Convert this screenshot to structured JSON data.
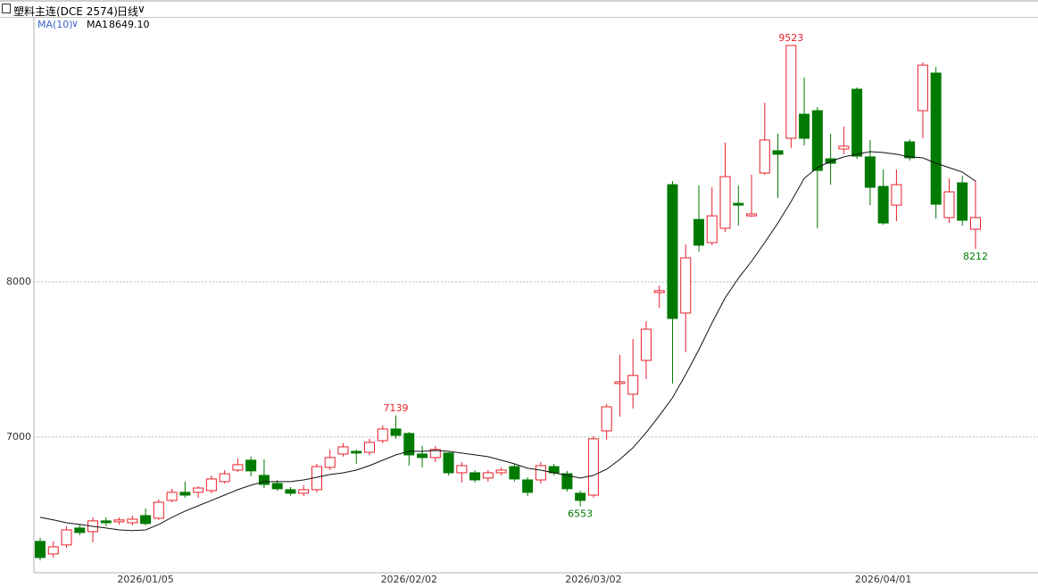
{
  "chart_data": {
    "type": "candlestick",
    "title": "塑料主连(DCE 2574)",
    "period": "日线",
    "indicator": "MA(10)",
    "categories": [
      null,
      null,
      null,
      null,
      null,
      null,
      null,
      null,
      "2026/01/05",
      null,
      null,
      null,
      null,
      null,
      null,
      null,
      null,
      null,
      null,
      null,
      null,
      null,
      null,
      null,
      null,
      null,
      null,
      null,
      "2026/02/02",
      null,
      null,
      null,
      null,
      null,
      null,
      null,
      null,
      null,
      null,
      null,
      null,
      null,
      "2026/03/02",
      null,
      null,
      null,
      null,
      null,
      null,
      null,
      null,
      null,
      null,
      null,
      null,
      null,
      null,
      null,
      null,
      null,
      null,
      null,
      null,
      null,
      "2026/04/01",
      null,
      null,
      null,
      null,
      null,
      null,
      null
    ],
    "open": [
      6328,
      6247,
      6305,
      6414,
      6391,
      6460,
      6454,
      6448,
      6494,
      6477,
      6592,
      6644,
      6644,
      6655,
      6713,
      6787,
      6851,
      6753,
      6701,
      6661,
      6638,
      6661,
      6805,
      6891,
      6908,
      6902,
      6977,
      7052,
      7023,
      6891,
      6868,
      6897,
      6770,
      6770,
      6736,
      6770,
      6810,
      6724,
      6724,
      6810,
      6764,
      6638,
      6626,
      7040,
      7345,
      7276,
      7494,
      7931,
      8626,
      7799,
      8402,
      8253,
      8345,
      8506,
      8425,
      8701,
      8845,
      8925,
      9080,
      9103,
      8793,
      8856,
      9241,
      8805,
      8615,
      8494,
      8902,
      9103,
      9345,
      8414,
      8638,
      8339
    ],
    "high": [
      6351,
      6328,
      6425,
      6437,
      6483,
      6483,
      6483,
      6494,
      6540,
      6598,
      6667,
      6713,
      6684,
      6753,
      6787,
      6862,
      6874,
      6856,
      6724,
      6678,
      6690,
      6828,
      6920,
      6960,
      6920,
      6989,
      7075,
      7139,
      7034,
      6943,
      6943,
      6902,
      6839,
      6787,
      6787,
      6805,
      6828,
      6741,
      6839,
      6828,
      6782,
      6655,
      7006,
      7213,
      7529,
      7632,
      7747,
      7977,
      8649,
      8241,
      8621,
      8609,
      8897,
      8621,
      8690,
      9155,
      8954,
      9523,
      9316,
      9126,
      8954,
      9000,
      9253,
      8914,
      8724,
      8724,
      8919,
      9414,
      9385,
      8667,
      8684,
      8655
    ],
    "low": [
      6205,
      6224,
      6287,
      6368,
      6322,
      6425,
      6437,
      6431,
      6431,
      6466,
      6580,
      6609,
      6609,
      6638,
      6701,
      6776,
      6747,
      6672,
      6655,
      6621,
      6621,
      6644,
      6787,
      6874,
      6828,
      6885,
      6960,
      6989,
      6816,
      6805,
      6839,
      6753,
      6707,
      6707,
      6713,
      6753,
      6713,
      6621,
      6701,
      6753,
      6649,
      6553,
      6609,
      6983,
      7132,
      7184,
      7374,
      7833,
      7345,
      7546,
      8195,
      8236,
      8322,
      8362,
      8419,
      8690,
      8540,
      8862,
      8879,
      8345,
      8626,
      8822,
      8793,
      8494,
      8368,
      8391,
      8782,
      8925,
      8408,
      8379,
      8362,
      8212
    ],
    "close": [
      6224,
      6293,
      6402,
      6385,
      6460,
      6448,
      6466,
      6471,
      6443,
      6580,
      6644,
      6626,
      6672,
      6730,
      6764,
      6822,
      6782,
      6695,
      6667,
      6638,
      6661,
      6810,
      6868,
      6937,
      6897,
      6966,
      7052,
      7011,
      6885,
      6868,
      6920,
      6770,
      6816,
      6724,
      6770,
      6787,
      6730,
      6644,
      6816,
      6770,
      6667,
      6592,
      6989,
      7195,
      7356,
      7397,
      7695,
      7943,
      7764,
      8155,
      8236,
      8425,
      8678,
      8494,
      8437,
      8914,
      8822,
      9523,
      8925,
      8718,
      8764,
      8874,
      8810,
      8609,
      8379,
      8626,
      8799,
      9396,
      8500,
      8580,
      8397,
      8414
    ],
    "up_color": "#e8202a",
    "down_color": "#007a00",
    "ma": {
      "name": "MA1",
      "color": "#111111",
      "value_label": "8649.10",
      "values": [
        6483,
        6466,
        6448,
        6437,
        6425,
        6414,
        6402,
        6397,
        6402,
        6437,
        6483,
        6523,
        6557,
        6592,
        6626,
        6661,
        6690,
        6713,
        6713,
        6713,
        6724,
        6741,
        6759,
        6770,
        6787,
        6816,
        6851,
        6885,
        6908,
        6908,
        6914,
        6908,
        6897,
        6885,
        6874,
        6851,
        6828,
        6799,
        6787,
        6770,
        6753,
        6736,
        6753,
        6793,
        6856,
        6931,
        7029,
        7138,
        7253,
        7402,
        7563,
        7736,
        7897,
        8023,
        8132,
        8253,
        8379,
        8517,
        8667,
        8736,
        8776,
        8805,
        8822,
        8839,
        8833,
        8822,
        8805,
        8799,
        8764,
        8736,
        8707,
        8649.1
      ]
    },
    "high_labels": [
      27,
      57
    ],
    "low_labels": [
      41,
      71
    ],
    "ylim": [
      6126,
      9701
    ],
    "yticks": [
      7000,
      8000
    ],
    "grid": true
  }
}
